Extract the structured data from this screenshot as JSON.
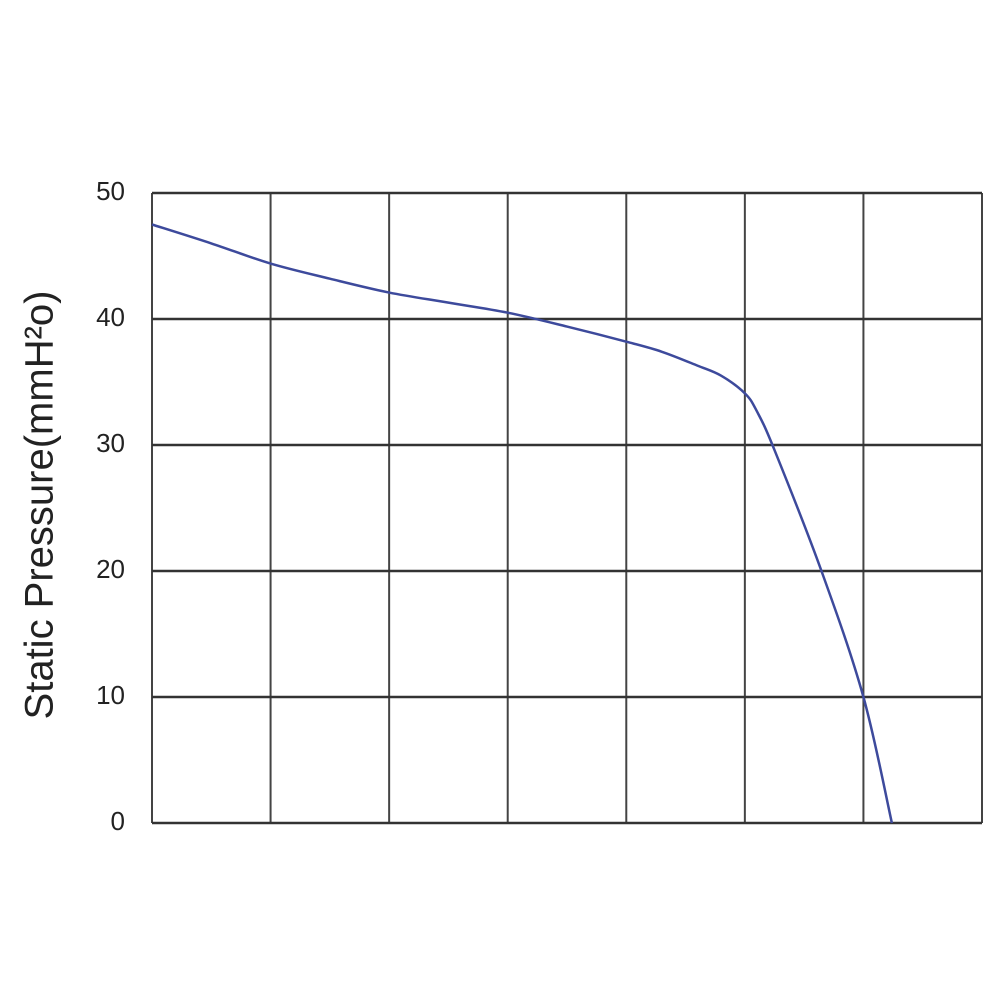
{
  "chart_data": {
    "type": "line",
    "ylabel": "Static Pressure(mmH²o)",
    "x": [
      0,
      0.5,
      1,
      1.5,
      2,
      2.5,
      3,
      3.5,
      4,
      4.3,
      4.6,
      4.8,
      5,
      5.1,
      5.25,
      5.65,
      6,
      6.24
    ],
    "series": [
      {
        "color": "#3d4a9c",
        "values": [
          47.5,
          46,
          44.4,
          43.2,
          42.1,
          41.3,
          40.5,
          39.4,
          38.2,
          37.4,
          36.3,
          35.5,
          34.1,
          32.7,
          29.6,
          19.9,
          10,
          0
        ]
      }
    ],
    "xlim": [
      0,
      7
    ],
    "xgrid_lines": 7,
    "ylim": [
      0,
      50
    ],
    "yticks": [
      0,
      10,
      20,
      30,
      40,
      50
    ],
    "grid": true
  }
}
